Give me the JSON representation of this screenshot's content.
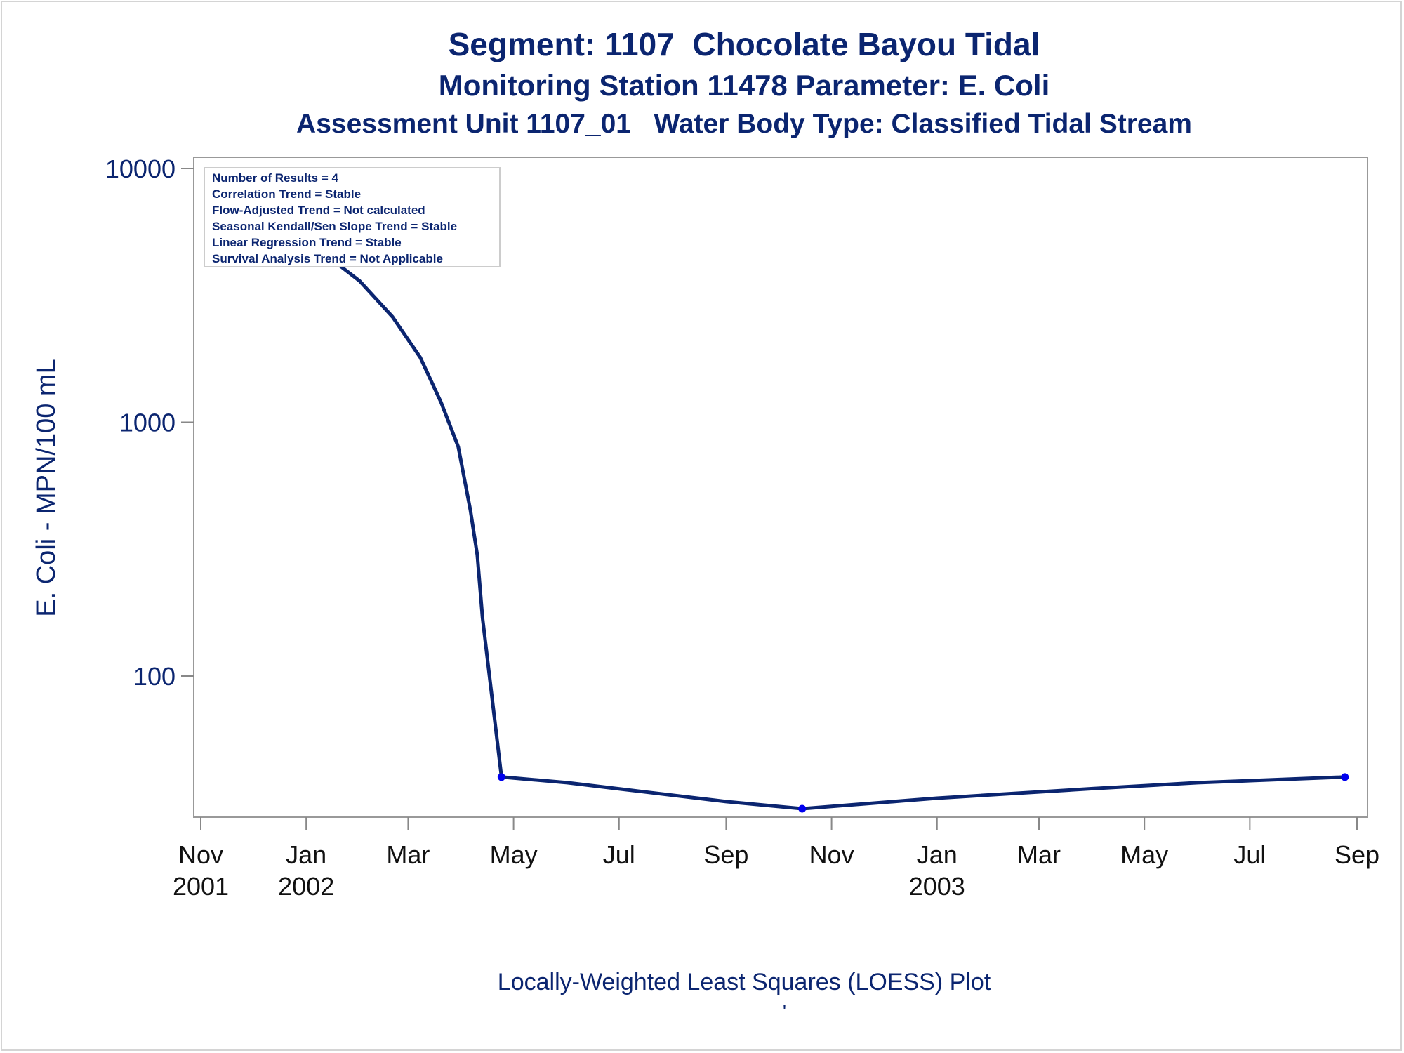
{
  "titles": {
    "line1": "Segment: 1107  Chocolate Bayou Tidal",
    "line2": "Monitoring Station 11478 Parameter: E. Coli",
    "line3": "Assessment Unit 1107_01   Water Body Type: Classified Tidal Stream"
  },
  "footer": {
    "caption": "Locally-Weighted Least Squares (LOESS) Plot",
    "mark": "'"
  },
  "stats_box": [
    "Number of Results = 4",
    "Correlation Trend = Stable",
    "Flow-Adjusted Trend = Not calculated",
    "Seasonal Kendall/Sen Slope Trend = Stable",
    "Linear Regression Trend = Stable",
    "Survival Analysis Trend = Not Applicable"
  ],
  "colors": {
    "line": "#0b2570",
    "point": "#0000ee",
    "text": "#0b2570",
    "axis": "#888888"
  },
  "chart_data": {
    "type": "line",
    "title": "Segment: 1107  Chocolate Bayou Tidal",
    "xlabel": "",
    "ylabel": "E. Coli - MPN/100 mL",
    "yscale": "log",
    "ylim": [
      30,
      10000
    ],
    "xlim": [
      "2001-11-01",
      "2003-09-01"
    ],
    "grid": false,
    "x_ticks": [
      {
        "date": "2001-11-01",
        "month": "Nov",
        "year": "2001"
      },
      {
        "date": "2002-01-01",
        "month": "Jan",
        "year": "2002"
      },
      {
        "date": "2002-03-01",
        "month": "Mar",
        "year": ""
      },
      {
        "date": "2002-05-01",
        "month": "May",
        "year": ""
      },
      {
        "date": "2002-07-01",
        "month": "Jul",
        "year": ""
      },
      {
        "date": "2002-09-01",
        "month": "Sep",
        "year": ""
      },
      {
        "date": "2002-11-01",
        "month": "Nov",
        "year": ""
      },
      {
        "date": "2003-01-01",
        "month": "Jan",
        "year": "2003"
      },
      {
        "date": "2003-03-01",
        "month": "Mar",
        "year": ""
      },
      {
        "date": "2003-05-01",
        "month": "May",
        "year": ""
      },
      {
        "date": "2003-07-01",
        "month": "Jul",
        "year": ""
      },
      {
        "date": "2003-09-01",
        "month": "Sep",
        "year": ""
      }
    ],
    "y_ticks": [
      {
        "value": 100,
        "label": "100"
      },
      {
        "value": 1000,
        "label": "1000"
      },
      {
        "value": 10000,
        "label": "10000"
      }
    ],
    "points": [
      {
        "date": "2001-12-11",
        "value": 6000
      },
      {
        "date": "2002-04-24",
        "value": 40
      },
      {
        "date": "2002-10-15",
        "value": 30
      },
      {
        "date": "2003-08-25",
        "value": 40
      }
    ],
    "loess_curve": [
      {
        "date": "2001-12-11",
        "value": 6000
      },
      {
        "date": "2002-01-10",
        "value": 4700
      },
      {
        "date": "2002-02-01",
        "value": 3600
      },
      {
        "date": "2002-02-20",
        "value": 2600
      },
      {
        "date": "2002-03-08",
        "value": 1800
      },
      {
        "date": "2002-03-20",
        "value": 1200
      },
      {
        "date": "2002-03-30",
        "value": 800
      },
      {
        "date": "2002-04-06",
        "value": 450
      },
      {
        "date": "2002-04-10",
        "value": 300
      },
      {
        "date": "2002-04-13",
        "value": 170
      },
      {
        "date": "2002-04-24",
        "value": 40
      },
      {
        "date": "2002-06-01",
        "value": 38
      },
      {
        "date": "2002-07-15",
        "value": 35
      },
      {
        "date": "2002-09-01",
        "value": 32
      },
      {
        "date": "2002-10-15",
        "value": 30
      },
      {
        "date": "2003-01-01",
        "value": 33
      },
      {
        "date": "2003-04-01",
        "value": 36
      },
      {
        "date": "2003-06-01",
        "value": 38
      },
      {
        "date": "2003-08-25",
        "value": 40
      }
    ]
  }
}
